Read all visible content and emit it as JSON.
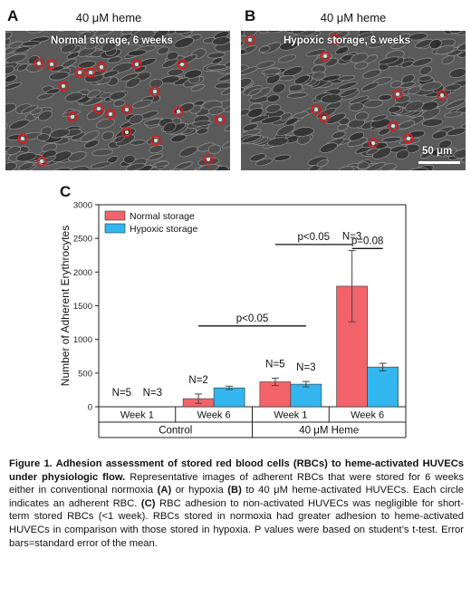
{
  "panel_a": {
    "letter": "A",
    "title": "40 μM heme",
    "overlay": "Normal storage, 6 weeks"
  },
  "panel_b": {
    "letter": "B",
    "title": "40 μM heme",
    "overlay": "Hypoxic storage, 6 weeks",
    "scale_bar": "50 μm"
  },
  "panel_c": {
    "letter": "C"
  },
  "colors": {
    "normal": "#f2646a",
    "hypoxic": "#33b5ef",
    "circle": "#e01a1a"
  },
  "chart_data": {
    "type": "bar",
    "ylabel": "Number of Adherent Erythrocytes",
    "ylim": [
      0,
      3000
    ],
    "yticks": [
      0,
      500,
      1000,
      1500,
      2000,
      2500,
      3000
    ],
    "categories": [
      "Week 1",
      "Week 6",
      "Week 1",
      "Week 6"
    ],
    "groups": [
      {
        "label": "Control",
        "categories": [
          0,
          1
        ]
      },
      {
        "label": "40 μM Heme",
        "categories": [
          2,
          3
        ]
      }
    ],
    "series": [
      {
        "name": "Normal storage",
        "color": "#f2646a",
        "values": [
          3,
          120,
          370,
          1790
        ],
        "errors": [
          0,
          70,
          55,
          530
        ]
      },
      {
        "name": "Hypoxic storage",
        "color": "#33b5ef",
        "values": [
          2,
          280,
          335,
          590
        ],
        "errors": [
          0,
          25,
          40,
          55
        ]
      }
    ],
    "n_labels": [
      {
        "text": "N=5",
        "category": 0,
        "series": 0
      },
      {
        "text": "N=3",
        "category": 0,
        "series": 1
      },
      {
        "text": "N=2",
        "category": 1,
        "series": 0
      },
      {
        "text": "N=5",
        "category": 2,
        "series": 0
      },
      {
        "text": "N=3",
        "category": 2,
        "series": 1
      },
      {
        "text": "N=3",
        "category": 3,
        "series": 0
      }
    ],
    "significance": [
      {
        "text": "p<0.05",
        "from": [
          1,
          0
        ],
        "to": [
          2,
          1
        ],
        "y": 1200
      },
      {
        "text": "p<0.05",
        "from": [
          2,
          0
        ],
        "to": [
          3,
          0
        ],
        "y": 2410
      },
      {
        "text": "p=0.08",
        "from": [
          3,
          0
        ],
        "to": [
          3,
          1
        ],
        "y": 2350
      }
    ],
    "legend": "top-left"
  },
  "caption": {
    "title": "Figure 1. Adhesion assessment of stored red blood cells (RBCs) to heme-activated HUVECs under physiologic flow.",
    "t1": " Representative images of adherent RBCs that were stored for 6 weeks either in conventional normoxia ",
    "a": "(A)",
    "t2": " or hypoxia ",
    "b": "(B)",
    "t3": " to 40 μM heme-activated HUVECs. Each circle indicates an adherent RBC. ",
    "c": "(C)",
    "t4": " RBC adhesion to non-activated HUVECs was negligible for short-term stored RBCs (<1 week). RBCs stored in normoxia had greater adhesion to heme-activated HUVECs in comparison with those stored in hypoxia. P values were based on student’s t-test. Error bars=standard error of the mean."
  }
}
